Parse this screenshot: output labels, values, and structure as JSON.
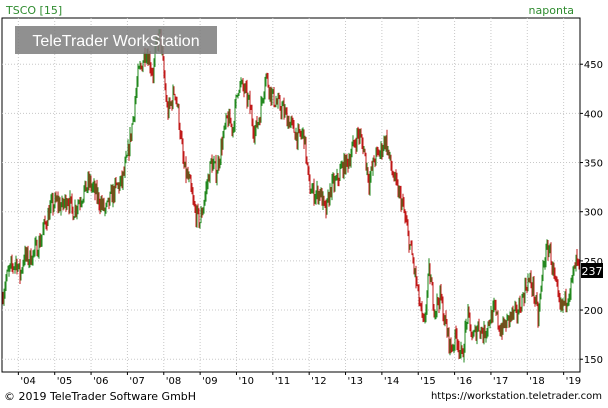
{
  "header": {
    "symbol_label": "TSCO [15]",
    "period_label": "naponta",
    "watermark": "TeleTrader WorkStation"
  },
  "footer": {
    "copyright": "© 2019 TeleTrader Software GmbH",
    "url": "https://workstation.teletrader.com"
  },
  "colors": {
    "up": "#22881e",
    "down": "#c01818",
    "grid": "#c8c8c8",
    "label_green": "#2e8b2e",
    "last_price_badge": "#000000"
  },
  "chart_data": {
    "type": "candlestick",
    "title": "TSCO [15]",
    "frequency": "naponta",
    "last_price_label": "237",
    "xlabel": "",
    "ylabel": "",
    "ylim": [
      137,
      497
    ],
    "yticks": [
      150,
      200,
      250,
      300,
      350,
      400,
      450
    ],
    "xlim": [
      2003.55,
      2019.45
    ],
    "xticks": [
      {
        "label": "'04",
        "value": 2004
      },
      {
        "label": "'05",
        "value": 2005
      },
      {
        "label": "'06",
        "value": 2006
      },
      {
        "label": "'07",
        "value": 2007
      },
      {
        "label": "'08",
        "value": 2008
      },
      {
        "label": "'09",
        "value": 2009
      },
      {
        "label": "'10",
        "value": 2010
      },
      {
        "label": "'11",
        "value": 2011
      },
      {
        "label": "'12",
        "value": 2012
      },
      {
        "label": "'13",
        "value": 2013
      },
      {
        "label": "'14",
        "value": 2014
      },
      {
        "label": "'15",
        "value": 2015
      },
      {
        "label": "'16",
        "value": 2016
      },
      {
        "label": "'17",
        "value": 2017
      },
      {
        "label": "'18",
        "value": 2018
      },
      {
        "label": "'19",
        "value": 2019
      }
    ],
    "grid": true,
    "series": [
      {
        "x": [
          2003.55,
          2003.65,
          2003.75,
          2003.85,
          2003.95,
          2004.05,
          2004.15,
          2004.3,
          2004.45,
          2004.6,
          2004.75,
          2004.9,
          2005.05,
          2005.2,
          2005.35,
          2005.5,
          2005.65,
          2005.8,
          2005.95,
          2006.1,
          2006.25,
          2006.4,
          2006.55,
          2006.7,
          2006.85,
          2007.0,
          2007.1,
          2007.2,
          2007.3,
          2007.4,
          2007.5,
          2007.6,
          2007.7,
          2007.8,
          2007.9,
          2008.0,
          2008.1,
          2008.2,
          2008.3,
          2008.4,
          2008.55,
          2008.7,
          2008.85,
          2009.0,
          2009.15,
          2009.3,
          2009.45,
          2009.6,
          2009.75,
          2009.9,
          2010.05,
          2010.2,
          2010.35,
          2010.5,
          2010.65,
          2010.8,
          2010.95,
          2011.1,
          2011.25,
          2011.4,
          2011.55,
          2011.7,
          2011.85,
          2012.0,
          2012.15,
          2012.3,
          2012.45,
          2012.6,
          2012.75,
          2012.9,
          2013.05,
          2013.2,
          2013.35,
          2013.5,
          2013.65,
          2013.8,
          2013.95,
          2014.1,
          2014.25,
          2014.4,
          2014.55,
          2014.7,
          2014.85,
          2015.0,
          2015.15,
          2015.3,
          2015.45,
          2015.6,
          2015.75,
          2015.9,
          2016.05,
          2016.2,
          2016.35,
          2016.5,
          2016.65,
          2016.8,
          2016.95,
          2017.1,
          2017.25,
          2017.4,
          2017.55,
          2017.7,
          2017.85,
          2018.0,
          2018.15,
          2018.3,
          2018.45,
          2018.6,
          2018.75,
          2018.9,
          2019.05,
          2019.2,
          2019.35,
          2019.45
        ],
        "close": [
          212,
          230,
          240,
          245,
          250,
          235,
          255,
          252,
          260,
          270,
          290,
          305,
          310,
          305,
          315,
          300,
          310,
          320,
          330,
          320,
          310,
          300,
          315,
          325,
          330,
          355,
          380,
          410,
          440,
          450,
          465,
          455,
          440,
          470,
          480,
          440,
          400,
          410,
          425,
          400,
          345,
          330,
          300,
          290,
          320,
          350,
          340,
          370,
          395,
          385,
          430,
          425,
          410,
          380,
          400,
          440,
          420,
          410,
          405,
          395,
          385,
          375,
          380,
          325,
          318,
          320,
          298,
          325,
          330,
          345,
          350,
          365,
          380,
          365,
          330,
          355,
          360,
          375,
          345,
          325,
          310,
          280,
          250,
          215,
          180,
          240,
          200,
          215,
          185,
          160,
          175,
          150,
          195,
          170,
          185,
          175,
          190,
          200,
          180,
          185,
          195,
          195,
          210,
          230,
          225,
          190,
          250,
          265,
          230,
          200,
          210,
          225,
          250,
          237
        ]
      }
    ]
  }
}
